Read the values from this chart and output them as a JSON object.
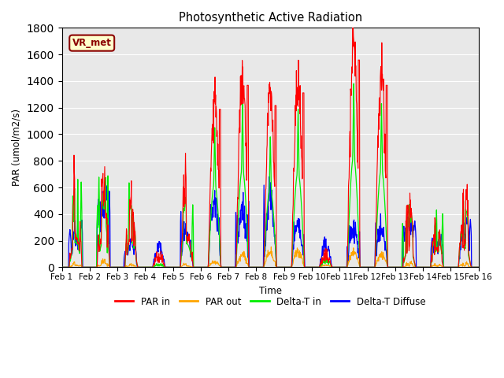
{
  "title": "Photosynthetic Active Radiation",
  "ylabel": "PAR (umol/m2/s)",
  "xlabel": "Time",
  "watermark": "VR_met",
  "ylim": [
    0,
    1800
  ],
  "xlim": [
    0,
    15
  ],
  "xtick_labels": [
    "Feb 1",
    "Feb 2",
    "Feb 3",
    "Feb 4",
    "Feb 5",
    "Feb 6",
    "Feb 7",
    "Feb 8",
    "Feb 9",
    "Feb 10",
    "Feb 11",
    "Feb 12",
    "Feb 13",
    "Feb 14",
    "Feb 15",
    "Feb 16"
  ],
  "colors": {
    "PAR_in": "#ff0000",
    "PAR_out": "#ffa500",
    "Delta_T_in": "#00ee00",
    "Delta_T_Diffuse": "#0000ff"
  },
  "background_color": "#e8e8e8",
  "legend_labels": [
    "PAR in",
    "PAR out",
    "Delta-T in",
    "Delta-T Diffuse"
  ]
}
